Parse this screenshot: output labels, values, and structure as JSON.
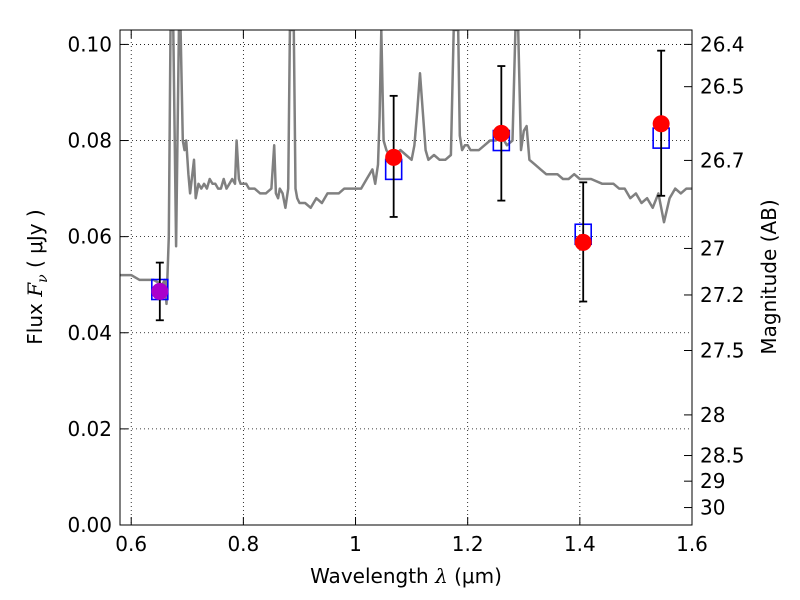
{
  "chart_data": {
    "type": "scatter",
    "title": "",
    "xlabel": {
      "prefix": "Wavelength",
      "symbol": "λ",
      "unit": "(μm)"
    },
    "ylabel": {
      "prefix": "Flux",
      "symbol": "F",
      "subscript": "ν",
      "unit": "( μJy )"
    },
    "ylabel_right": "Magnitude (AB)",
    "xlim": [
      0.58,
      1.6
    ],
    "ylim": [
      0.0,
      0.103
    ],
    "grid": true,
    "x_ticks": [
      {
        "value": 0.6,
        "label": "0.6"
      },
      {
        "value": 0.8,
        "label": "0.8"
      },
      {
        "value": 1.0,
        "label": "1"
      },
      {
        "value": 1.2,
        "label": "1.2"
      },
      {
        "value": 1.4,
        "label": "1.4"
      },
      {
        "value": 1.6,
        "label": "1.6"
      }
    ],
    "y_ticks": [
      {
        "value": 0.0,
        "label": "0.00"
      },
      {
        "value": 0.02,
        "label": "0.02"
      },
      {
        "value": 0.04,
        "label": "0.04"
      },
      {
        "value": 0.06,
        "label": "0.06"
      },
      {
        "value": 0.08,
        "label": "0.08"
      },
      {
        "value": 0.1,
        "label": "0.10"
      }
    ],
    "right_ticks": [
      {
        "mag": 26.4,
        "label": "26.4"
      },
      {
        "mag": 26.5,
        "label": "26.5"
      },
      {
        "mag": 26.7,
        "label": "26.7"
      },
      {
        "mag": 27.0,
        "label": "27"
      },
      {
        "mag": 27.2,
        "label": "27.2"
      },
      {
        "mag": 27.5,
        "label": "27.5"
      },
      {
        "mag": 28.0,
        "label": "28"
      },
      {
        "mag": 28.5,
        "label": "28.5"
      },
      {
        "mag": 29.0,
        "label": "29"
      },
      {
        "mag": 30.0,
        "label": "30"
      }
    ],
    "model_spectrum": {
      "color": "#808080",
      "x": [
        0.58,
        0.6,
        0.615,
        0.625,
        0.64,
        0.655,
        0.66,
        0.663,
        0.667,
        0.67,
        0.675,
        0.68,
        0.685,
        0.688,
        0.692,
        0.695,
        0.698,
        0.702,
        0.705,
        0.708,
        0.712,
        0.715,
        0.72,
        0.725,
        0.73,
        0.735,
        0.74,
        0.745,
        0.75,
        0.755,
        0.76,
        0.765,
        0.77,
        0.775,
        0.78,
        0.785,
        0.788,
        0.792,
        0.795,
        0.8,
        0.805,
        0.81,
        0.82,
        0.83,
        0.84,
        0.85,
        0.855,
        0.858,
        0.862,
        0.865,
        0.87,
        0.875,
        0.88,
        0.883,
        0.886,
        0.89,
        0.893,
        0.896,
        0.9,
        0.91,
        0.92,
        0.93,
        0.94,
        0.95,
        0.96,
        0.97,
        0.98,
        0.99,
        1.0,
        1.01,
        1.02,
        1.03,
        1.035,
        1.04,
        1.043,
        1.046,
        1.05,
        1.055,
        1.06,
        1.065,
        1.07,
        1.08,
        1.09,
        1.1,
        1.105,
        1.11,
        1.115,
        1.12,
        1.125,
        1.13,
        1.14,
        1.15,
        1.16,
        1.17,
        1.175,
        1.18,
        1.183,
        1.186,
        1.19,
        1.195,
        1.2,
        1.205,
        1.21,
        1.22,
        1.23,
        1.24,
        1.25,
        1.26,
        1.27,
        1.28,
        1.285,
        1.29,
        1.295,
        1.3,
        1.305,
        1.31,
        1.32,
        1.33,
        1.34,
        1.35,
        1.36,
        1.37,
        1.38,
        1.39,
        1.4,
        1.42,
        1.44,
        1.46,
        1.47,
        1.48,
        1.49,
        1.5,
        1.51,
        1.52,
        1.53,
        1.54,
        1.55,
        1.56,
        1.57,
        1.58,
        1.59,
        1.6
      ],
      "y": [
        0.052,
        0.052,
        0.051,
        0.051,
        0.051,
        0.05,
        0.051,
        0.046,
        0.06,
        0.103,
        0.103,
        0.058,
        0.103,
        0.103,
        0.08,
        0.078,
        0.08,
        0.073,
        0.069,
        0.072,
        0.076,
        0.068,
        0.071,
        0.07,
        0.071,
        0.07,
        0.072,
        0.071,
        0.071,
        0.07,
        0.07,
        0.072,
        0.07,
        0.071,
        0.072,
        0.071,
        0.08,
        0.072,
        0.071,
        0.071,
        0.071,
        0.07,
        0.07,
        0.069,
        0.069,
        0.07,
        0.079,
        0.069,
        0.068,
        0.07,
        0.069,
        0.066,
        0.07,
        0.103,
        0.103,
        0.103,
        0.07,
        0.068,
        0.067,
        0.067,
        0.066,
        0.068,
        0.067,
        0.069,
        0.069,
        0.069,
        0.07,
        0.07,
        0.07,
        0.07,
        0.072,
        0.074,
        0.071,
        0.075,
        0.085,
        0.103,
        0.08,
        0.078,
        0.077,
        0.076,
        0.077,
        0.078,
        0.077,
        0.076,
        0.079,
        0.086,
        0.094,
        0.086,
        0.078,
        0.076,
        0.077,
        0.076,
        0.076,
        0.077,
        0.103,
        0.103,
        0.103,
        0.081,
        0.078,
        0.079,
        0.079,
        0.078,
        0.078,
        0.078,
        0.079,
        0.08,
        0.08,
        0.081,
        0.079,
        0.08,
        0.103,
        0.103,
        0.078,
        0.082,
        0.083,
        0.076,
        0.075,
        0.074,
        0.073,
        0.073,
        0.073,
        0.072,
        0.072,
        0.073,
        0.072,
        0.072,
        0.071,
        0.071,
        0.07,
        0.07,
        0.068,
        0.069,
        0.067,
        0.068,
        0.066,
        0.069,
        0.063,
        0.068,
        0.07,
        0.069,
        0.07,
        0.07
      ]
    },
    "observed_points": {
      "color": "#ff0000",
      "first_point_color": "#aa00cc",
      "points": [
        {
          "x": 0.651,
          "y": 0.0486,
          "err_low": 0.0426,
          "err_high": 0.0546
        },
        {
          "x": 1.068,
          "y": 0.0765,
          "err_low": 0.0641,
          "err_high": 0.0893
        },
        {
          "x": 1.26,
          "y": 0.0815,
          "err_low": 0.0675,
          "err_high": 0.0955
        },
        {
          "x": 1.406,
          "y": 0.0588,
          "err_low": 0.0465,
          "err_high": 0.0713
        },
        {
          "x": 1.545,
          "y": 0.0835,
          "err_low": 0.0685,
          "err_high": 0.0987
        }
      ]
    },
    "model_photometry": {
      "color": "#0000ff",
      "points": [
        {
          "x": 0.651,
          "y": 0.049
        },
        {
          "x": 1.068,
          "y": 0.074
        },
        {
          "x": 1.26,
          "y": 0.08
        },
        {
          "x": 1.406,
          "y": 0.0605
        },
        {
          "x": 1.545,
          "y": 0.0805
        }
      ]
    }
  }
}
